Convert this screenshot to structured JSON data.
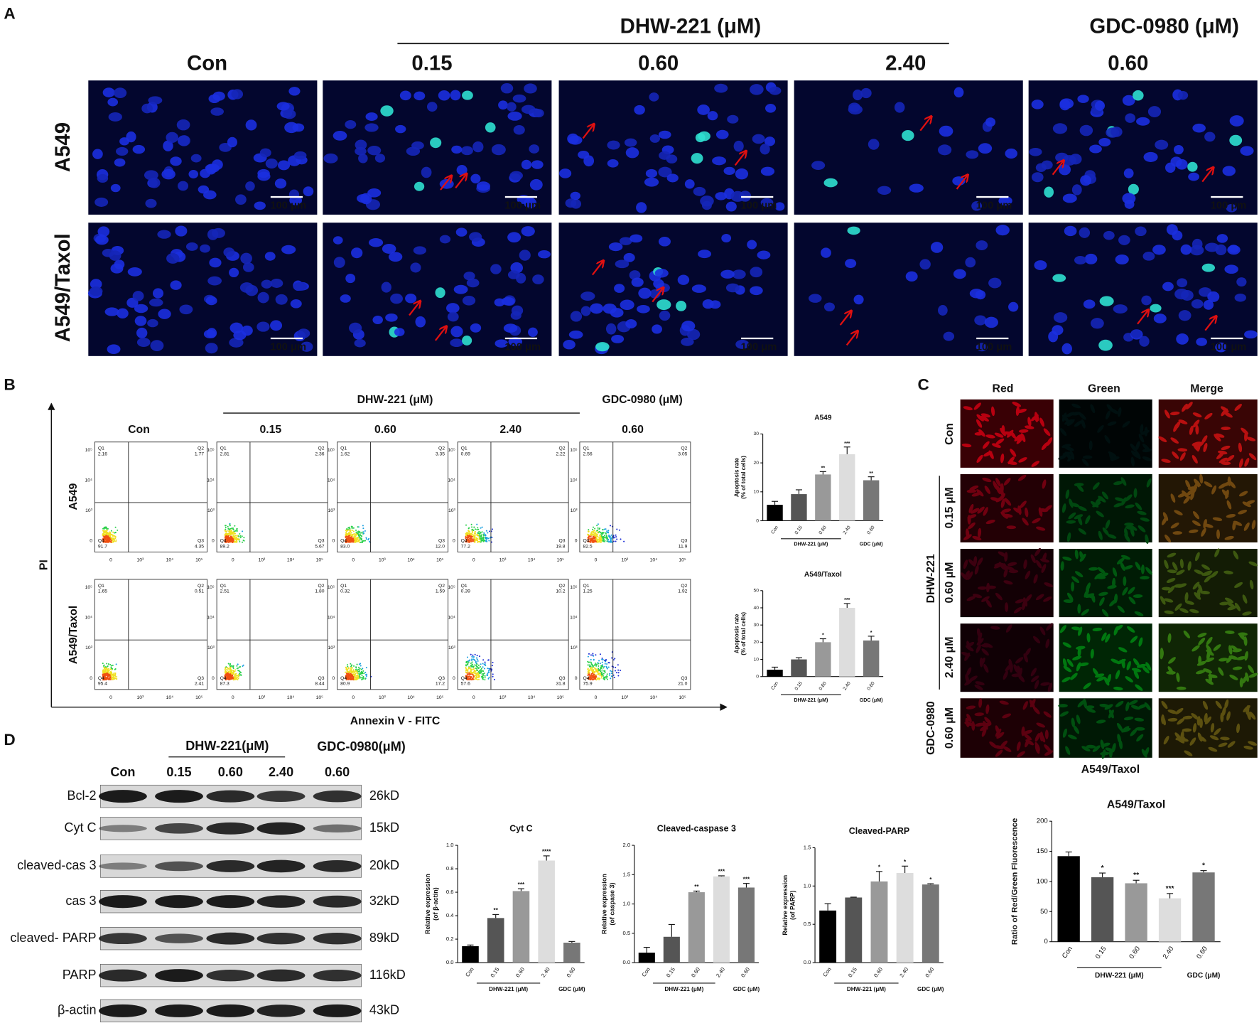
{
  "panel_a": {
    "label": "A",
    "group_title": "DHW-221  (μM)",
    "gdc_title": "GDC-0980 (μM)",
    "columns": [
      "Con",
      "0.15",
      "0.60",
      "2.40",
      "0.60"
    ],
    "rows": [
      "A549",
      "A549/Taxol"
    ],
    "scale_bar": "100 μm"
  },
  "panel_b": {
    "label": "B",
    "group_title": "DHW-221 (μM)",
    "gdc_title": "GDC-0980 (μM)",
    "columns": [
      "Con",
      "0.15",
      "0.60",
      "2.40",
      "0.60"
    ],
    "rows": [
      "A549",
      "A549/Taxol"
    ],
    "y_axis": "PI",
    "x_axis": "Annexin V - FITC",
    "quadrant_names": [
      "Q1",
      "Q2",
      "Q3",
      "Q4"
    ],
    "axis_ticks": [
      "0",
      "10³",
      "10⁴",
      "10⁵"
    ],
    "plots": [
      [
        [
          "2.16",
          "1.77",
          "4.35",
          "91.7"
        ],
        [
          "2.81",
          "2.36",
          "5.67",
          "89.2"
        ],
        [
          "1.62",
          "3.35",
          "12.0",
          "83.0"
        ],
        [
          "0.69",
          "2.22",
          "19.8",
          "77.2"
        ],
        [
          "2.56",
          "3.05",
          "11.9",
          "82.5"
        ]
      ],
      [
        [
          "1.65",
          "0.51",
          "2.41",
          "95.4"
        ],
        [
          "2.51",
          "1.80",
          "8.44",
          "87.3"
        ],
        [
          "0.32",
          "1.59",
          "17.2",
          "80.9"
        ],
        [
          "0.39",
          "10.2",
          "31.8",
          "57.6"
        ],
        [
          "1.25",
          "1.92",
          "21.0",
          "75.9"
        ]
      ]
    ]
  },
  "panel_c": {
    "label": "C",
    "channels": [
      "Red",
      "Green",
      "Merge"
    ],
    "rows": [
      "Con",
      "0.15 μM",
      "0.60 μM",
      "2.40 μM",
      "0.60 μM"
    ],
    "group": "DHW-221",
    "gdc": "GDC-0980",
    "cell_line": "A549/Taxol"
  },
  "panel_d": {
    "label": "D",
    "group_title": "DHW-221(μM)",
    "gdc_title": "GDC-0980(μM)",
    "lanes": [
      "Con",
      "0.15",
      "0.60",
      "2.40",
      "0.60"
    ],
    "proteins": [
      {
        "name": "Bcl-2",
        "size": "26kD"
      },
      {
        "name": "Cyt C",
        "size": "15kD"
      },
      {
        "name": "cleaved-cas 3",
        "size": "20kD"
      },
      {
        "name": "cas 3",
        "size": "32kD"
      },
      {
        "name": "cleaved- PARP",
        "size": "89kD"
      },
      {
        "name": "PARP",
        "size": "116kD"
      },
      {
        "name": "β-actin",
        "size": "43kD"
      }
    ]
  },
  "chart_data": [
    {
      "type": "bar",
      "title": "A549",
      "ylabel": [
        "Apoptosis rate",
        "(% of total cells)"
      ],
      "categories": [
        "Con",
        "0.15",
        "0.60",
        "2.40",
        "0.60"
      ],
      "group_labels": [
        "DHW-221 (μM)",
        "GDC (μM)"
      ],
      "values": [
        5.5,
        9.2,
        16,
        23,
        14
      ],
      "errors": [
        1.2,
        1.5,
        1,
        2.5,
        1.2
      ],
      "significance": [
        null,
        null,
        "**",
        "***",
        "**"
      ],
      "colors": [
        "#000000",
        "#555555",
        "#999999",
        "#dddddd",
        "#777777"
      ],
      "ylim": [
        0,
        30
      ],
      "yticks": [
        0,
        10,
        20,
        30
      ]
    },
    {
      "type": "bar",
      "title": "A549/Taxol",
      "ylabel": [
        "Apoptosis rate",
        "(% of total cells)"
      ],
      "categories": [
        "Con",
        "0.15",
        "0.60",
        "2.40",
        "0.60"
      ],
      "group_labels": [
        "DHW-221 (μM)",
        "GDC (μM)"
      ],
      "values": [
        4,
        10,
        20,
        40,
        21
      ],
      "errors": [
        1.5,
        1,
        2,
        2.5,
        2.5
      ],
      "significance": [
        null,
        null,
        "*",
        "***",
        "*"
      ],
      "colors": [
        "#000000",
        "#555555",
        "#999999",
        "#dddddd",
        "#777777"
      ],
      "ylim": [
        0,
        50
      ],
      "yticks": [
        0,
        10,
        20,
        30,
        40,
        50
      ]
    },
    {
      "type": "bar",
      "title": "Cyt C",
      "ylabel": [
        "Relative expression",
        "(of β-actin)"
      ],
      "categories": [
        "Con",
        "0.15",
        "0.60",
        "2.40",
        "0.60"
      ],
      "group_labels": [
        "DHW-221 (μM)",
        "GDC (μM)"
      ],
      "values": [
        0.14,
        0.38,
        0.61,
        0.87,
        0.17
      ],
      "errors": [
        0.01,
        0.03,
        0.02,
        0.04,
        0.01
      ],
      "significance": [
        null,
        "**",
        "***",
        "****",
        null
      ],
      "colors": [
        "#000000",
        "#555555",
        "#999999",
        "#dddddd",
        "#777777"
      ],
      "ylim": [
        0,
        1.0
      ],
      "yticks": [
        {
          "value": 0,
          "label": "0.0"
        },
        0.2,
        0.4,
        0.6,
        0.8,
        {
          "value": 1.0,
          "label": "1.0"
        }
      ]
    },
    {
      "type": "bar",
      "title": "Cleaved-caspase 3",
      "ylabel": [
        "Relative expression",
        "(of caspase 3)"
      ],
      "categories": [
        "Con",
        "0.15",
        "0.60",
        "2.40",
        "0.60"
      ],
      "group_labels": [
        "DHW-221 (μM)",
        "GDC (μM)"
      ],
      "values": [
        0.17,
        0.44,
        1.2,
        1.47,
        1.28
      ],
      "errors": [
        0.09,
        0.21,
        0.02,
        0.01,
        0.07
      ],
      "significance": [
        null,
        null,
        "**",
        "***",
        "***"
      ],
      "colors": [
        "#000000",
        "#555555",
        "#999999",
        "#dddddd",
        "#777777"
      ],
      "ylim": [
        0,
        2.0
      ],
      "yticks": [
        {
          "value": 0,
          "label": "0.0"
        },
        0.5,
        {
          "value": 1.0,
          "label": "1.0"
        },
        1.5,
        {
          "value": 2.0,
          "label": "2.0"
        }
      ]
    },
    {
      "type": "bar",
      "title": "Cleaved-PARP",
      "ylabel": [
        "Relative expression",
        "(of PARP)"
      ],
      "categories": [
        "Con",
        "0.15",
        "0.60",
        "2.40",
        "0.60"
      ],
      "group_labels": [
        "DHW-221 (μM)",
        "GDC (μM)"
      ],
      "values": [
        0.68,
        0.85,
        1.06,
        1.17,
        1.02
      ],
      "errors": [
        0.09,
        0.005,
        0.13,
        0.09,
        0.01
      ],
      "significance": [
        null,
        null,
        "*",
        "*",
        "*"
      ],
      "colors": [
        "#000000",
        "#555555",
        "#999999",
        "#dddddd",
        "#777777"
      ],
      "ylim": [
        0,
        1.5
      ],
      "yticks": [
        {
          "value": 0,
          "label": "0.0"
        },
        0.5,
        {
          "value": 1.0,
          "label": "1.0"
        },
        1.5
      ]
    },
    {
      "type": "bar",
      "title": "A549/Taxol",
      "ylabel": [
        "Ratio of Red/Green Fluorescence"
      ],
      "categories": [
        "Con",
        "0.15",
        "0.60",
        "2.40",
        "0.60"
      ],
      "group_labels": [
        "DHW-221 (μM)",
        "GDC (μM)"
      ],
      "values": [
        142,
        107,
        97,
        72,
        115
      ],
      "errors": [
        7,
        7,
        5,
        8,
        3
      ],
      "significance": [
        null,
        "*",
        "**",
        "***",
        "*"
      ],
      "colors": [
        "#000000",
        "#555555",
        "#999999",
        "#dddddd",
        "#777777"
      ],
      "ylim": [
        0,
        200
      ],
      "yticks": [
        0,
        50,
        100,
        150,
        200
      ]
    }
  ]
}
